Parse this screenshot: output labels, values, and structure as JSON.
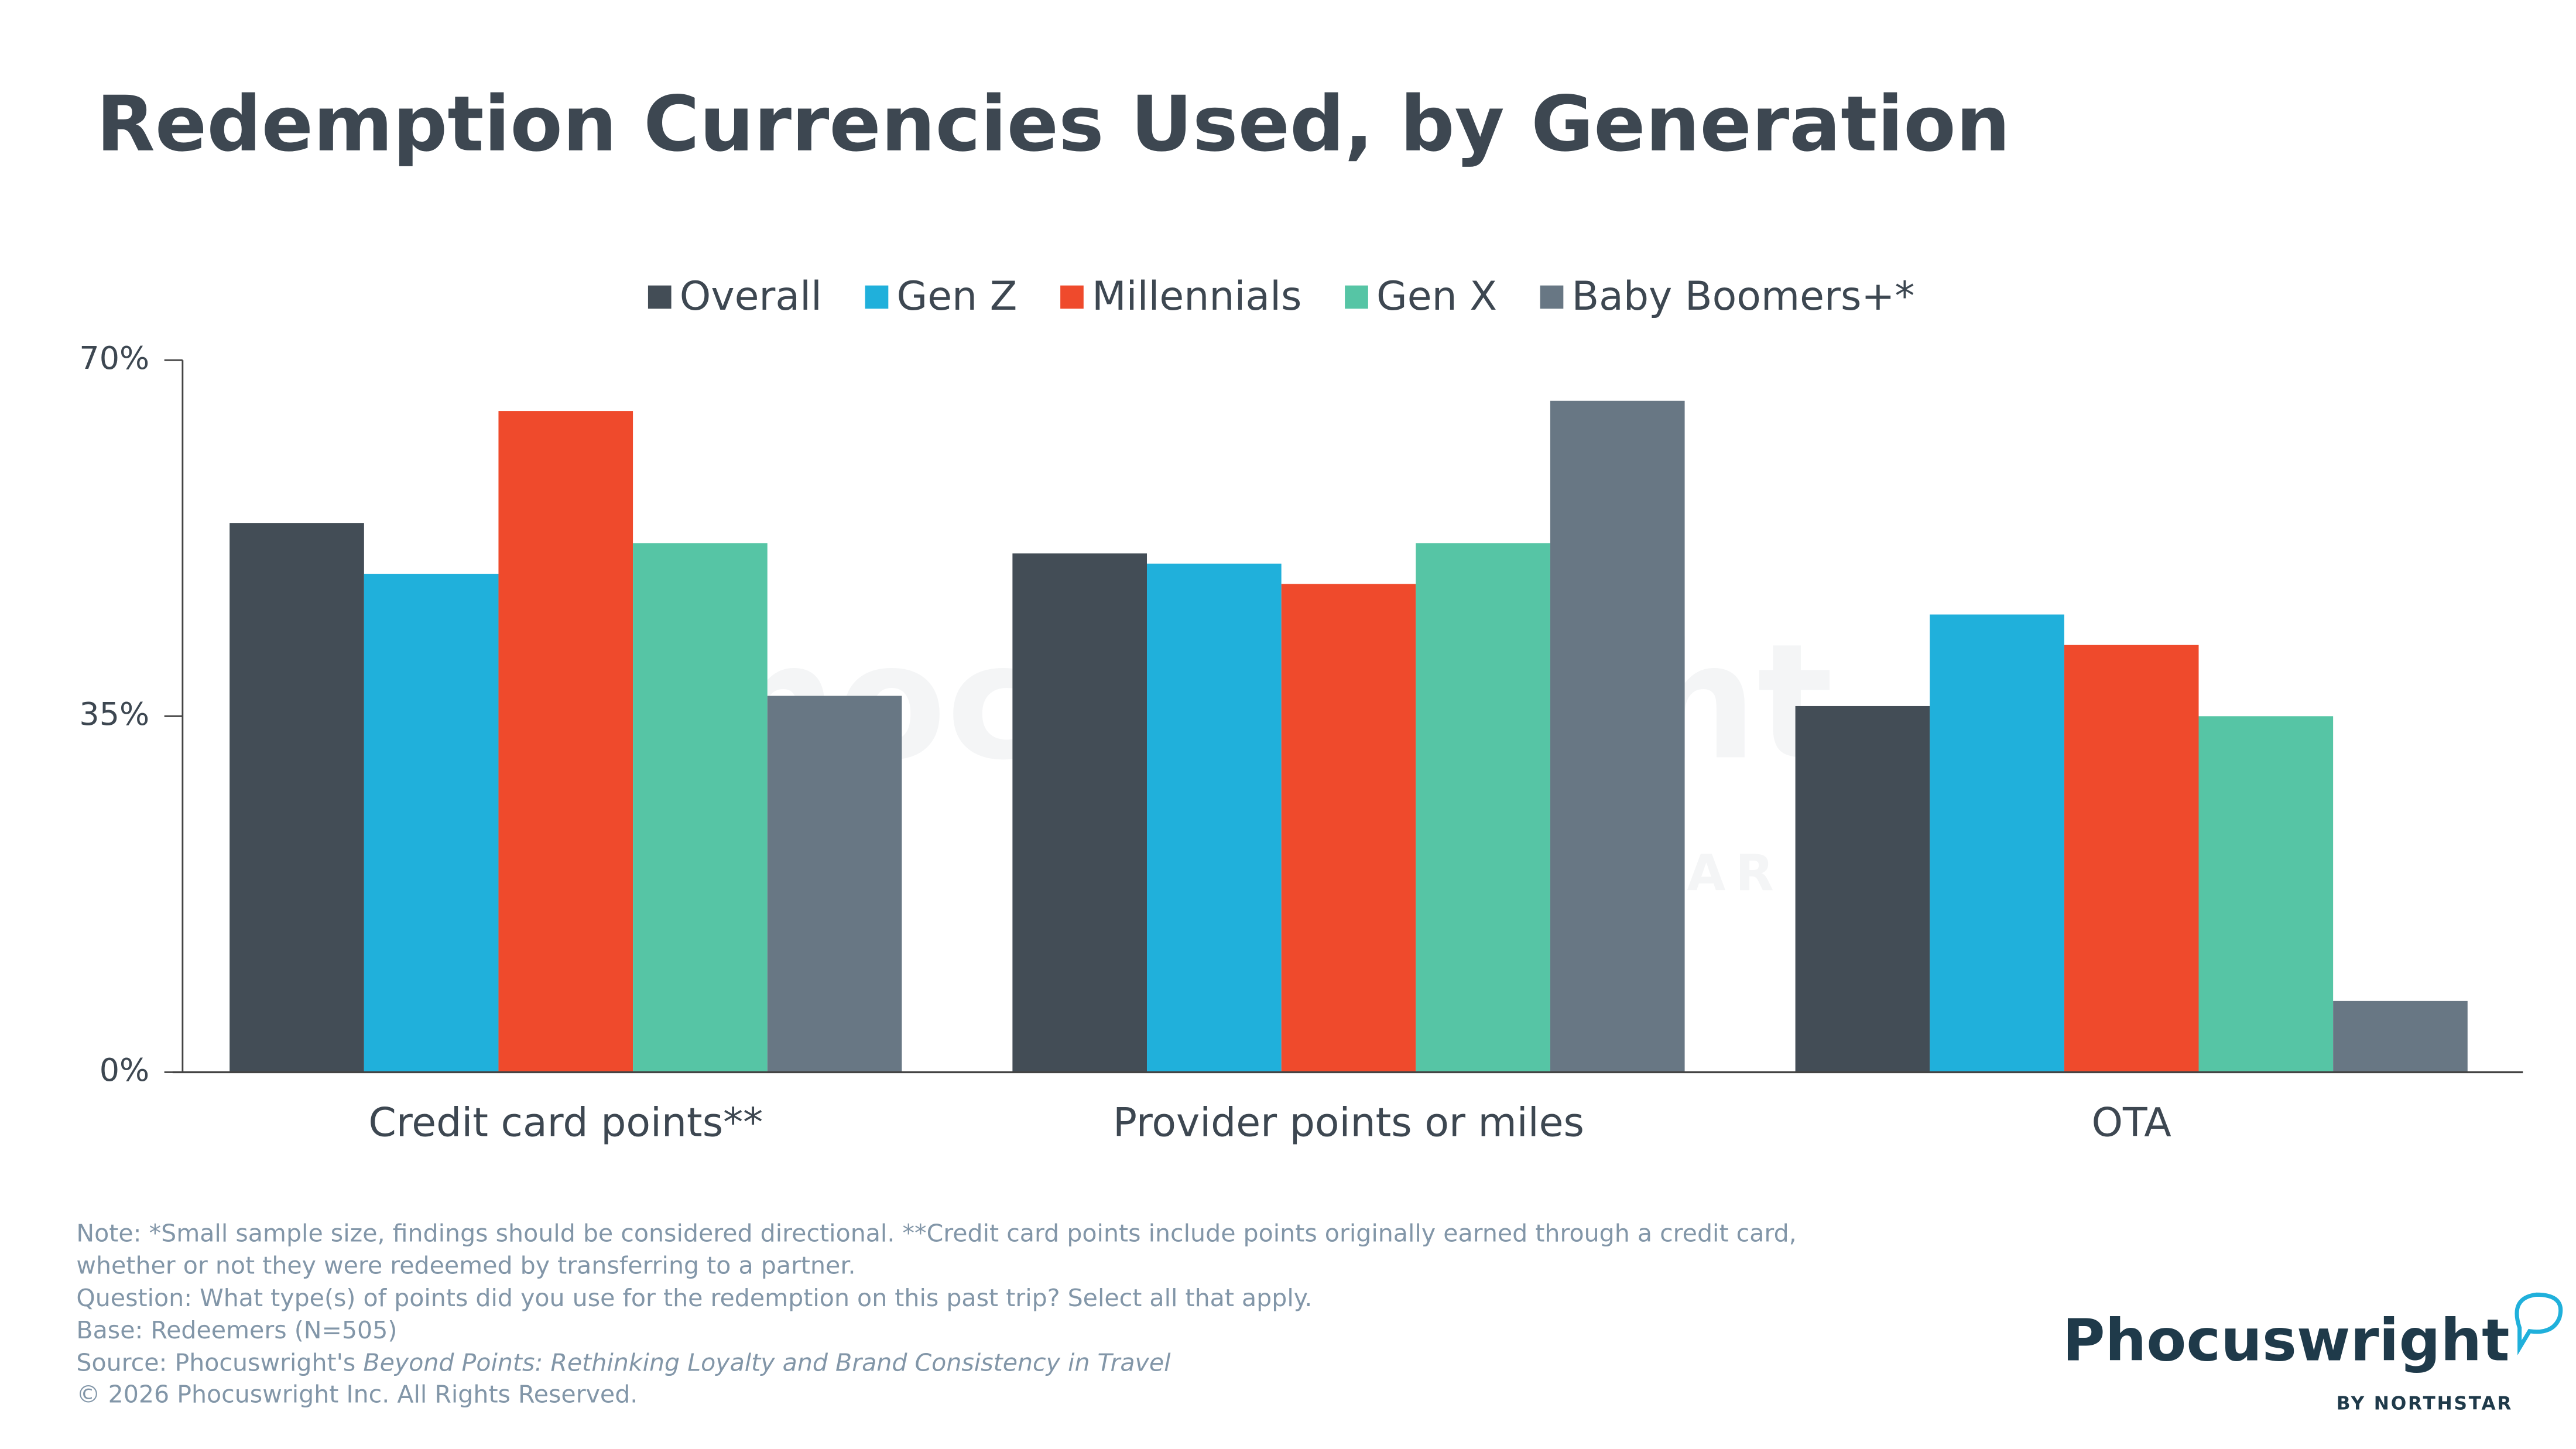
{
  "chart_data": {
    "type": "bar",
    "title": "Redemption Currencies Used, by Generation",
    "categories": [
      "Credit card points**",
      "Provider points or miles",
      "OTA"
    ],
    "series": [
      {
        "name": "Overall",
        "color": "#434d56",
        "values": [
          54,
          51,
          36
        ]
      },
      {
        "name": "Gen Z",
        "color": "#20b0db",
        "values": [
          49,
          50,
          45
        ]
      },
      {
        "name": "Millennials",
        "color": "#ef4a2c",
        "values": [
          65,
          48,
          42
        ]
      },
      {
        "name": "Gen X",
        "color": "#56c5a5",
        "values": [
          52,
          52,
          35
        ]
      },
      {
        "name": "Baby Boomers+*",
        "color": "#687784",
        "values": [
          37,
          66,
          7
        ]
      }
    ],
    "ylim": [
      0,
      70
    ],
    "yticks": [
      {
        "value": 0,
        "label": "0%"
      },
      {
        "value": 35,
        "label": "35%"
      },
      {
        "value": 70,
        "label": "70%"
      }
    ],
    "legend": "top",
    "notes": [
      "Note: *Small sample size, findings should be considered directional. **Credit card points include points originally earned through a credit card,",
      "whether or not they were redeemed by transferring to a partner.",
      "Question: What type(s) of points did you use for the redemption on this past trip? Select all that apply.",
      "Base: Redeemers (N=505)"
    ],
    "source": {
      "prefix": "Source: Phocuswright's ",
      "title": "Beyond Points: Rethinking Loyalty and Brand Consistency in Travel"
    },
    "copyright": "© 2026 Phocuswright Inc. All Rights Reserved.",
    "logo": {
      "name": "Phocuswright",
      "tagline": "BY NORTHSTAR"
    },
    "watermark": {
      "name": "Phocuswright",
      "tagline": "BY NORTHSTAR"
    }
  }
}
